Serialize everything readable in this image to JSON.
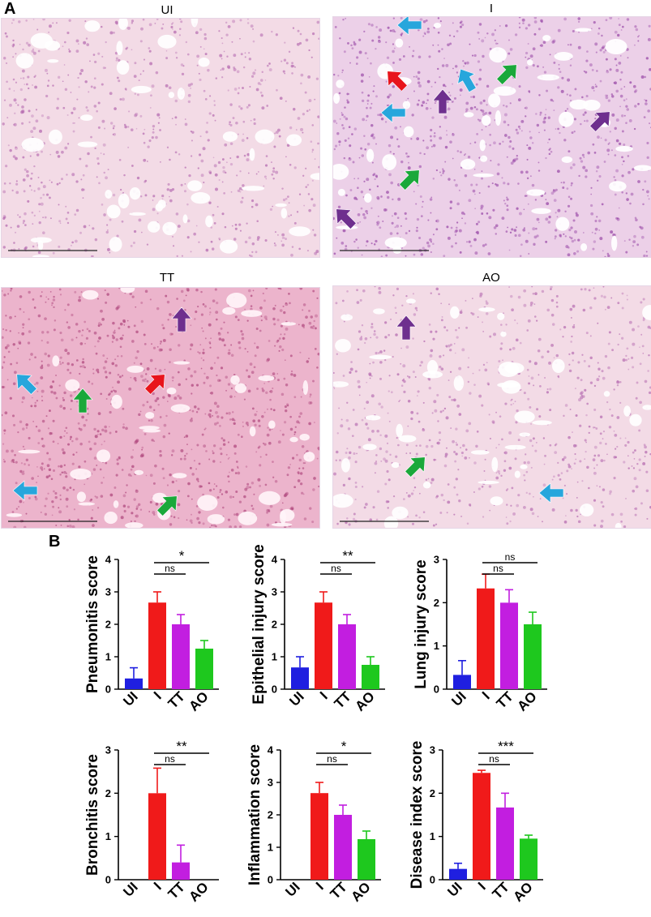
{
  "panel_a": {
    "letter": "A",
    "images": [
      {
        "title": "UI",
        "tone": "pale"
      },
      {
        "title": "I",
        "tone": "purple"
      },
      {
        "title": "TT",
        "tone": "dense"
      },
      {
        "title": "AO",
        "tone": "pale"
      }
    ],
    "arrow_colors": {
      "red": "#e8141c",
      "blue": "#27a6dc",
      "green": "#1aa83a",
      "purple": "#6e2f8e"
    }
  },
  "panel_b": {
    "letter": "B"
  },
  "chart_data": [
    {
      "type": "bar",
      "ylabel": "Pneumonitis score",
      "categories": [
        "UI",
        "I",
        "TT",
        "AO"
      ],
      "values": [
        0.33,
        2.67,
        2.0,
        1.25
      ],
      "errors": [
        0.33,
        0.33,
        0.3,
        0.25
      ],
      "ylim": [
        0,
        4
      ],
      "yticks": [
        "0",
        "1",
        "2",
        "3",
        "4"
      ],
      "colors": [
        "#1f1fe0",
        "#f01a1a",
        "#c21ee0",
        "#1ec81e"
      ],
      "annotations": [
        {
          "from": 1,
          "to": 2,
          "text": "ns"
        },
        {
          "from": 1,
          "to": 3,
          "text": "*"
        }
      ]
    },
    {
      "type": "bar",
      "ylabel": "Epithelial injury score",
      "categories": [
        "UI",
        "I",
        "TT",
        "AO"
      ],
      "values": [
        0.67,
        2.67,
        2.0,
        0.75
      ],
      "errors": [
        0.33,
        0.33,
        0.3,
        0.25
      ],
      "ylim": [
        0,
        4
      ],
      "yticks": [
        "0",
        "1",
        "2",
        "3",
        "4"
      ],
      "colors": [
        "#1f1fe0",
        "#f01a1a",
        "#c21ee0",
        "#1ec81e"
      ],
      "annotations": [
        {
          "from": 1,
          "to": 2,
          "text": "ns"
        },
        {
          "from": 1,
          "to": 3,
          "text": "**"
        }
      ]
    },
    {
      "type": "bar",
      "ylabel": "Lung injury score",
      "categories": [
        "UI",
        "I",
        "TT",
        "AO"
      ],
      "values": [
        0.33,
        2.33,
        2.0,
        1.5
      ],
      "errors": [
        0.33,
        0.33,
        0.3,
        0.28
      ],
      "ylim": [
        0,
        3
      ],
      "yticks": [
        "0",
        "1",
        "2",
        "3"
      ],
      "colors": [
        "#1f1fe0",
        "#f01a1a",
        "#c21ee0",
        "#1ec81e"
      ],
      "annotations": [
        {
          "from": 1,
          "to": 2,
          "text": "ns"
        },
        {
          "from": 1,
          "to": 3,
          "text": "ns"
        }
      ]
    },
    {
      "type": "bar",
      "ylabel": "Bronchitis score",
      "categories": [
        "UI",
        "I",
        "TT",
        "AO"
      ],
      "values": [
        0,
        2.0,
        0.4,
        0
      ],
      "errors": [
        0,
        0.58,
        0.4,
        0
      ],
      "ylim": [
        0,
        3
      ],
      "yticks": [
        "0",
        "1",
        "2",
        "3"
      ],
      "colors": [
        "#1f1fe0",
        "#f01a1a",
        "#c21ee0",
        "#1ec81e"
      ],
      "annotations": [
        {
          "from": 1,
          "to": 2,
          "text": "ns"
        },
        {
          "from": 1,
          "to": 3,
          "text": "**"
        }
      ]
    },
    {
      "type": "bar",
      "ylabel": "Inflammation score",
      "categories": [
        "UI",
        "I",
        "TT",
        "AO"
      ],
      "values": [
        0,
        2.67,
        2.0,
        1.25
      ],
      "errors": [
        0,
        0.33,
        0.3,
        0.25
      ],
      "ylim": [
        0,
        4
      ],
      "yticks": [
        "0",
        "1",
        "2",
        "3",
        "4"
      ],
      "colors": [
        "#1f1fe0",
        "#f01a1a",
        "#c21ee0",
        "#1ec81e"
      ],
      "annotations": [
        {
          "from": 1,
          "to": 2,
          "text": "ns"
        },
        {
          "from": 1,
          "to": 3,
          "text": "*"
        }
      ]
    },
    {
      "type": "bar",
      "ylabel": "Disease index score",
      "categories": [
        "UI",
        "I",
        "TT",
        "AO"
      ],
      "values": [
        0.25,
        2.47,
        1.67,
        0.95
      ],
      "errors": [
        0.13,
        0.06,
        0.33,
        0.08
      ],
      "ylim": [
        0,
        3
      ],
      "yticks": [
        "0",
        "1",
        "2",
        "3"
      ],
      "colors": [
        "#1f1fe0",
        "#f01a1a",
        "#c21ee0",
        "#1ec81e"
      ],
      "annotations": [
        {
          "from": 1,
          "to": 2,
          "text": "ns"
        },
        {
          "from": 1,
          "to": 3,
          "text": "***"
        }
      ]
    }
  ]
}
